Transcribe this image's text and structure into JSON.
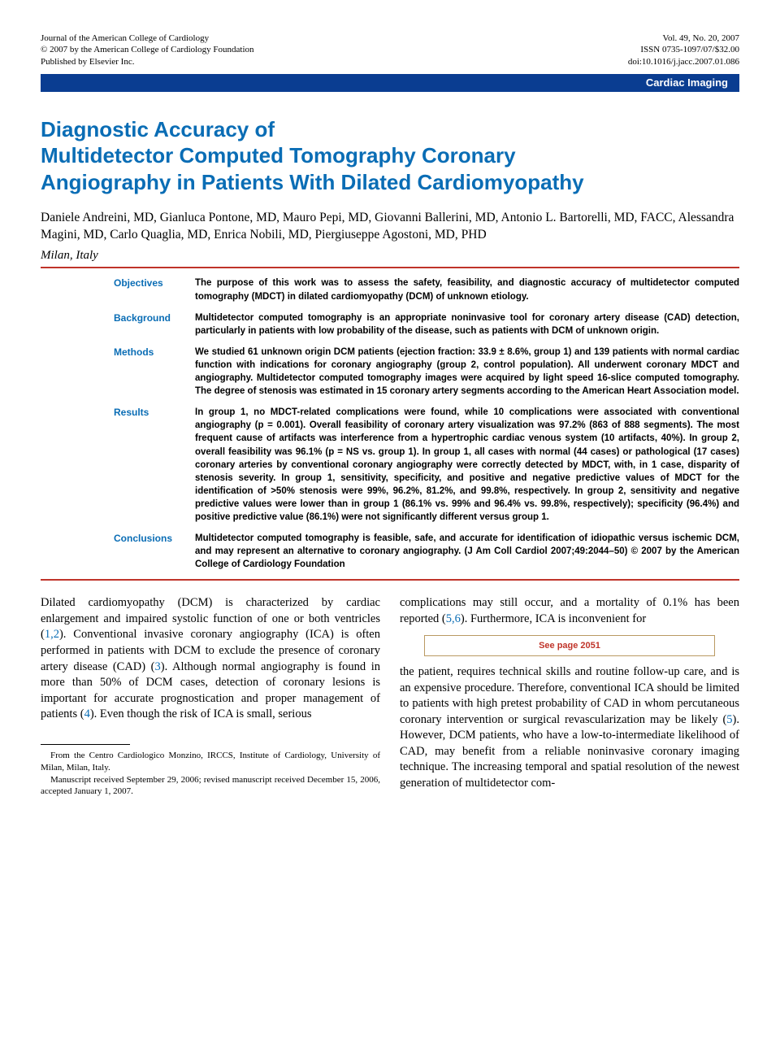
{
  "header": {
    "left_line1": "Journal of the American College of Cardiology",
    "left_line2": "© 2007 by the American College of Cardiology Foundation",
    "left_line3": "Published by Elsevier Inc.",
    "right_line1": "Vol. 49, No. 20, 2007",
    "right_line2": "ISSN 0735-1097/07/$32.00",
    "right_line3": "doi:10.1016/j.jacc.2007.01.086"
  },
  "category_bar": {
    "label": "Cardiac Imaging"
  },
  "title": {
    "line1": "Diagnostic Accuracy of",
    "line2": "Multidetector Computed Tomography Coronary",
    "line3": "Angiography in Patients With Dilated Cardiomyopathy"
  },
  "authors": "Daniele Andreini, MD, Gianluca Pontone, MD, Mauro Pepi, MD, Giovanni Ballerini, MD, Antonio L. Bartorelli, MD, FACC, Alessandra Magini, MD, Carlo Quaglia, MD, Enrica Nobili, MD, Piergiuseppe Agostoni, MD, PHD",
  "affiliation": "Milan, Italy",
  "abstract": {
    "objectives": {
      "label": "Objectives",
      "text": "The purpose of this work was to assess the safety, feasibility, and diagnostic accuracy of multidetector computed tomography (MDCT) in dilated cardiomyopathy (DCM) of unknown etiology."
    },
    "background": {
      "label": "Background",
      "text": "Multidetector computed tomography is an appropriate noninvasive tool for coronary artery disease (CAD) detection, particularly in patients with low probability of the disease, such as patients with DCM of unknown origin."
    },
    "methods": {
      "label": "Methods",
      "text": "We studied 61 unknown origin DCM patients (ejection fraction: 33.9 ± 8.6%, group 1) and 139 patients with normal cardiac function with indications for coronary angiography (group 2, control population). All underwent coronary MDCT and angiography. Multidetector computed tomography images were acquired by light speed 16-slice computed tomography. The degree of stenosis was estimated in 15 coronary artery segments according to the American Heart Association model."
    },
    "results": {
      "label": "Results",
      "text": "In group 1, no MDCT-related complications were found, while 10 complications were associated with conventional angiography (p = 0.001). Overall feasibility of coronary artery visualization was 97.2% (863 of 888 segments). The most frequent cause of artifacts was interference from a hypertrophic cardiac venous system (10 artifacts, 40%). In group 2, overall feasibility was 96.1% (p = NS vs. group 1). In group 1, all cases with normal (44 cases) or pathological (17 cases) coronary arteries by conventional coronary angiography were correctly detected by MDCT, with, in 1 case, disparity of stenosis severity. In group 1, sensitivity, specificity, and positive and negative predictive values of MDCT for the identification of >50% stenosis were 99%, 96.2%, 81.2%, and 99.8%, respectively. In group 2, sensitivity and negative predictive values were lower than in group 1 (86.1% vs. 99% and 96.4% vs. 99.8%, respectively); specificity (96.4%) and positive predictive value (86.1%) were not significantly different versus group 1."
    },
    "conclusions": {
      "label": "Conclusions",
      "text": "Multidetector computed tomography is feasible, safe, and accurate for identification of idiopathic versus ischemic DCM, and may represent an alternative to coronary angiography.   (J Am Coll Cardiol 2007;49:2044–50) © 2007 by the American College of Cardiology Foundation"
    }
  },
  "body": {
    "col1": {
      "para1_a": "Dilated cardiomyopathy (DCM) is characterized by cardiac enlargement and impaired systolic function of one or both ventricles (",
      "ref1": "1,2",
      "para1_b": "). Conventional invasive coronary angiography (ICA) is often performed in patients with DCM to exclude the presence of coronary artery disease (CAD) (",
      "ref2": "3",
      "para1_c": "). Although normal angiography is found in more than 50% of DCM cases, detection of coronary lesions is important for accurate prognostication and proper management of patients (",
      "ref3": "4",
      "para1_d": "). Even though the risk of ICA is small, serious"
    },
    "col2": {
      "para1_a": "complications may still occur, and a mortality of 0.1% has been reported (",
      "ref1": "5,6",
      "para1_b": "). Furthermore, ICA is inconvenient for",
      "seepage": "See page 2051",
      "para2_a": "the patient, requires technical skills and routine follow-up care, and is an expensive procedure. Therefore, conventional ICA should be limited to patients with high pretest probability of CAD in whom percutaneous coronary intervention or surgical revascularization may be likely (",
      "ref2": "5",
      "para2_b": "). However, DCM patients, who have a low-to-intermediate likelihood of CAD, may benefit from a reliable noninvasive coronary imaging technique. The increasing temporal and spatial resolution of the newest generation of multidetector com-"
    }
  },
  "footnote": {
    "line1": "From the Centro Cardiologico Monzino, IRCCS, Institute of Cardiology, University of Milan, Milan, Italy.",
    "line2": "Manuscript received September 29, 2006; revised manuscript received December 15, 2006, accepted January 1, 2007."
  },
  "colors": {
    "brand_blue": "#0a6db5",
    "bar_blue": "#0a3d91",
    "rule_red": "#c0342a",
    "seepage_border": "#ba9a63"
  }
}
